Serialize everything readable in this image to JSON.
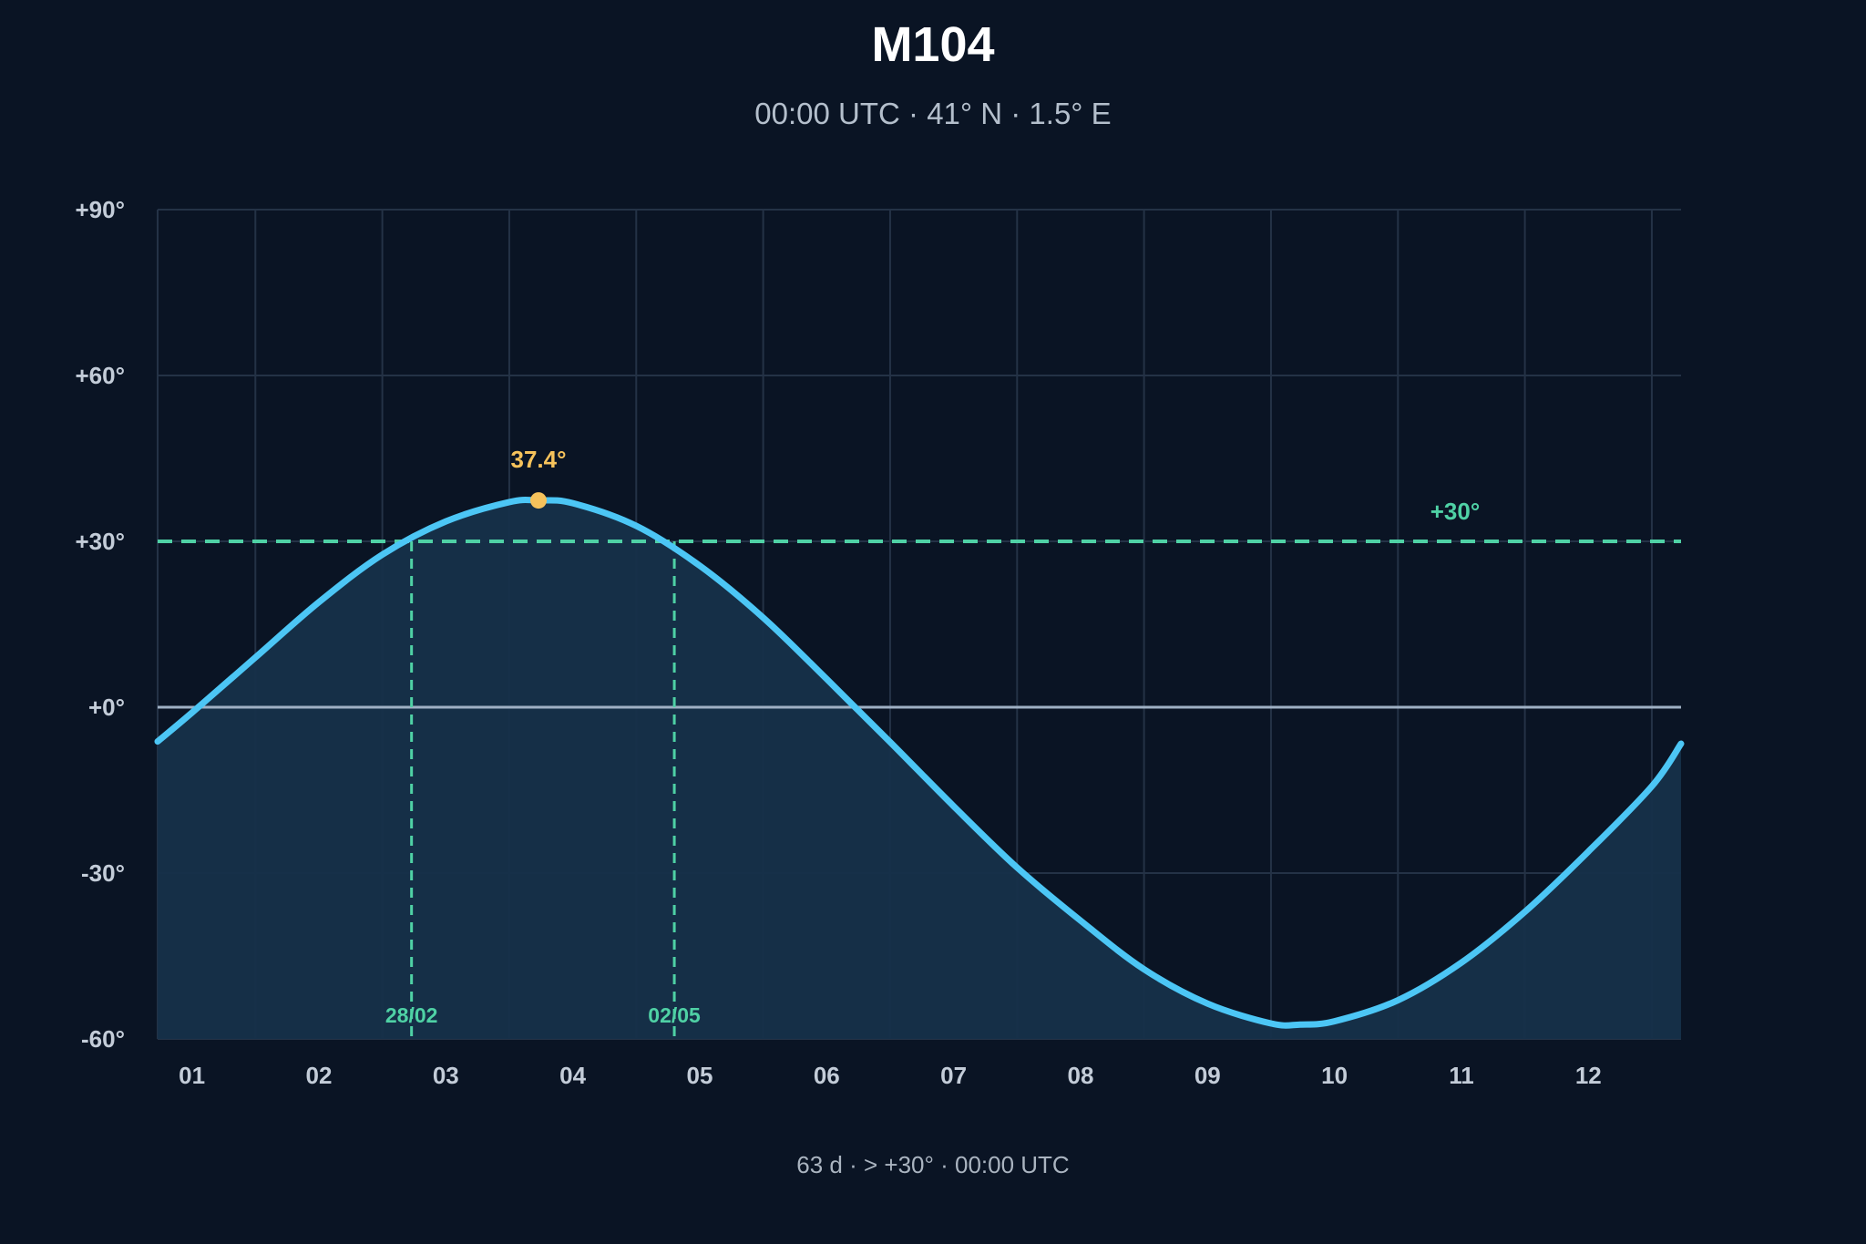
{
  "header": {
    "title": "M104",
    "subtitle": "00:00 UTC · 41° N · 1.5° E"
  },
  "footer": {
    "text": "63 d · > +30° · 00:00 UTC"
  },
  "colors": {
    "background": "#0a1424",
    "grid": "#243246",
    "curve": "#4cc6f5",
    "fill": "#16304a",
    "threshold": "#4fd1a5",
    "horizon": "#9fb0c4",
    "peak": "#f6c25b"
  },
  "chart_data": {
    "type": "area",
    "title": "M104",
    "subtitle": "00:00 UTC · 41° N · 1.5° E",
    "xlabel": "",
    "ylabel": "",
    "x_range_months": [
      0.73,
      12.73
    ],
    "ylim": [
      -60,
      90
    ],
    "month_ticks": [
      "01",
      "02",
      "03",
      "04",
      "05",
      "06",
      "07",
      "08",
      "09",
      "10",
      "11",
      "12"
    ],
    "y_ticks": [
      {
        "value": 90,
        "label": "+90°"
      },
      {
        "value": 60,
        "label": "+60°"
      },
      {
        "value": 30,
        "label": "+30°"
      },
      {
        "value": 0,
        "label": "+0°"
      },
      {
        "value": -30,
        "label": "-30°"
      },
      {
        "value": -60,
        "label": "-60°"
      }
    ],
    "grid": true,
    "series": [
      {
        "x_month": [
          0.73,
          1.0,
          1.5,
          2.0,
          2.5,
          3.0,
          3.5,
          3.73,
          4.0,
          4.5,
          5.0,
          5.5,
          6.0,
          6.5,
          7.0,
          7.5,
          8.0,
          8.5,
          9.0,
          9.5,
          9.73,
          10.0,
          10.5,
          11.0,
          11.5,
          12.0,
          12.5,
          12.73
        ],
        "y": [
          -6.2,
          -1.0,
          9.0,
          19.0,
          27.6,
          33.6,
          37.1,
          37.4,
          36.9,
          32.8,
          25.6,
          16.2,
          5.1,
          -6.3,
          -17.9,
          -29.0,
          -38.6,
          -47.4,
          -53.6,
          -57.2,
          -57.4,
          -56.8,
          -53.0,
          -46.2,
          -37.0,
          -26.1,
          -14.3,
          -6.6
        ]
      }
    ],
    "threshold": {
      "value": 30,
      "label": "+30°"
    },
    "threshold_crossings": [
      {
        "x_month": 2.73,
        "label": "28/02"
      },
      {
        "x_month": 4.8,
        "label": "02/05"
      }
    ],
    "peak": {
      "x_month": 3.73,
      "y": 37.4,
      "label": "37.4°"
    }
  }
}
